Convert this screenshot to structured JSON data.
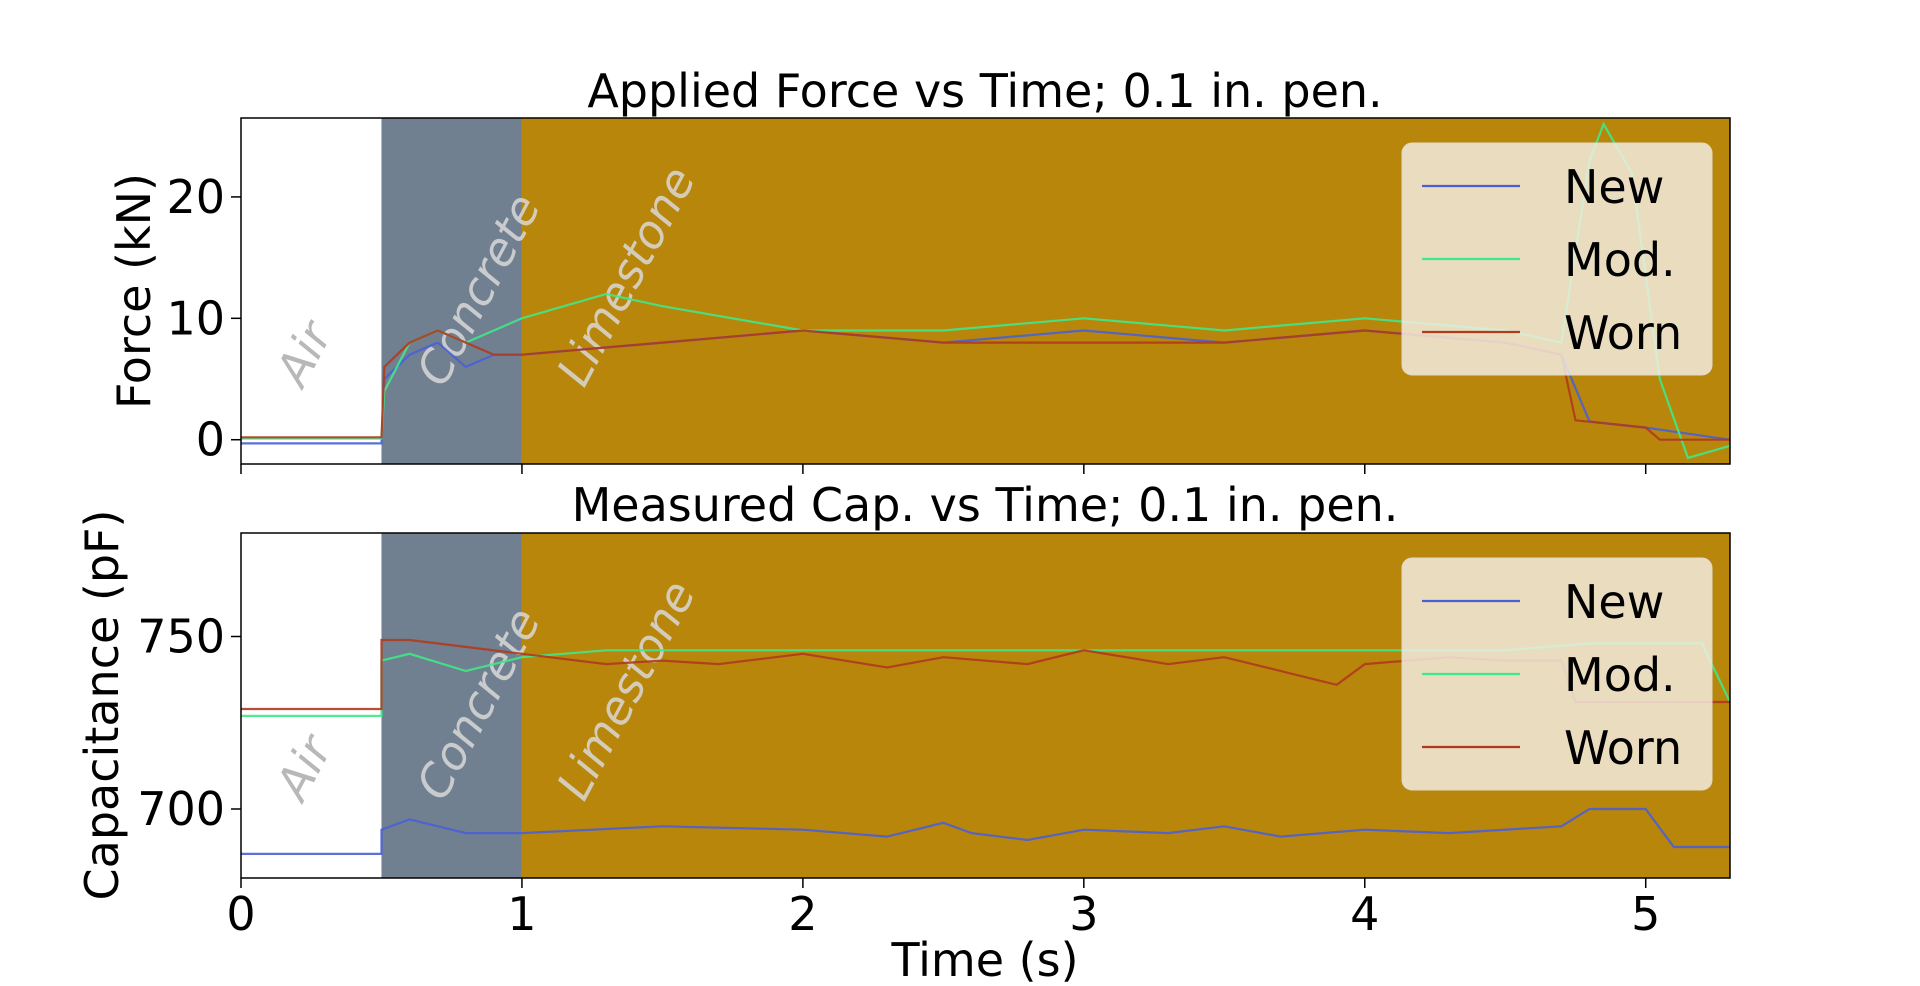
{
  "chart_data": [
    {
      "type": "line",
      "title": "Applied Force vs Time; 0.1 in. pen.",
      "xlabel": "",
      "ylabel": "Force (kN)",
      "xlim": [
        0,
        5.3
      ],
      "ylim": [
        -2,
        26.5
      ],
      "xticks": [
        0,
        1,
        2,
        3,
        4,
        5
      ],
      "xtick_labels_visible": false,
      "yticks": [
        0,
        10,
        20
      ],
      "ytick_labels": [
        "0",
        "10",
        "20"
      ],
      "grid": false,
      "legend": {
        "placement": "top-right",
        "entries": [
          "New",
          "Mod.",
          "Worn"
        ]
      },
      "regions": [
        {
          "label": "Air",
          "x_start": 0,
          "x_end": 0.5,
          "color": "#ffffff"
        },
        {
          "label": "Concrete",
          "x_start": 0.5,
          "x_end": 1.0,
          "color": "#708090"
        },
        {
          "label": "Limestone",
          "x_start": 1.0,
          "x_end": 5.3,
          "color": "#b8860b"
        }
      ],
      "series": [
        {
          "name": "New",
          "color": "#4a5fd6",
          "x": [
            0,
            0.5,
            0.51,
            0.6,
            0.7,
            0.8,
            0.9,
            1.0,
            1.5,
            2.0,
            2.5,
            3.0,
            3.5,
            4.0,
            4.5,
            4.7,
            4.8,
            5.0,
            5.3
          ],
          "y": [
            -0.3,
            -0.3,
            5,
            7,
            8,
            6,
            7,
            7,
            8,
            9,
            8,
            9,
            8,
            9,
            8,
            7,
            1.5,
            1,
            0
          ]
        },
        {
          "name": "Mod.",
          "color": "#3fe888",
          "x": [
            0,
            0.5,
            0.51,
            0.6,
            0.7,
            0.8,
            0.9,
            1.0,
            1.3,
            1.5,
            2.0,
            2.5,
            3.0,
            3.5,
            4.0,
            4.5,
            4.7,
            4.8,
            4.85,
            4.95,
            5.05,
            5.15,
            5.3
          ],
          "y": [
            0.1,
            0.1,
            4,
            8,
            9,
            8,
            9,
            10,
            12,
            11,
            9,
            9,
            10,
            9,
            10,
            9,
            8,
            23,
            26,
            22,
            5,
            -1.5,
            -0.5
          ]
        },
        {
          "name": "Worn",
          "color": "#b03a1e",
          "x": [
            0,
            0.5,
            0.51,
            0.6,
            0.7,
            0.8,
            0.9,
            1.0,
            1.5,
            2.0,
            2.5,
            3.0,
            3.5,
            4.0,
            4.5,
            4.7,
            4.75,
            5.0,
            5.05,
            5.3
          ],
          "y": [
            0.2,
            0.2,
            6,
            8,
            9,
            8,
            7,
            7,
            8,
            9,
            8,
            8,
            8,
            9,
            8,
            7,
            1.6,
            1,
            0,
            0
          ]
        }
      ]
    },
    {
      "type": "line",
      "title": "Measured Cap. vs Time; 0.1 in. pen.",
      "xlabel": "Time (s)",
      "ylabel": "Capacitance (pF)",
      "xlim": [
        0,
        5.3
      ],
      "ylim": [
        680,
        780
      ],
      "xticks": [
        0,
        1,
        2,
        3,
        4,
        5
      ],
      "xtick_labels": [
        "0",
        "1",
        "2",
        "3",
        "4",
        "5"
      ],
      "yticks": [
        700,
        750
      ],
      "ytick_labels": [
        "700",
        "750"
      ],
      "grid": false,
      "legend": {
        "placement": "top-right",
        "entries": [
          "New",
          "Mod.",
          "Worn"
        ]
      },
      "regions": [
        {
          "label": "Air",
          "x_start": 0,
          "x_end": 0.5,
          "color": "#ffffff"
        },
        {
          "label": "Concrete",
          "x_start": 0.5,
          "x_end": 1.0,
          "color": "#708090"
        },
        {
          "label": "Limestone",
          "x_start": 1.0,
          "x_end": 5.3,
          "color": "#b8860b"
        }
      ],
      "series": [
        {
          "name": "New",
          "color": "#4a5fd6",
          "x": [
            0,
            0.5,
            0.5,
            0.6,
            0.8,
            1.0,
            1.5,
            2.0,
            2.3,
            2.5,
            2.6,
            2.8,
            3.0,
            3.3,
            3.5,
            3.7,
            4.0,
            4.3,
            4.7,
            4.8,
            5.0,
            5.1,
            5.3
          ],
          "y": [
            687,
            687,
            694,
            697,
            693,
            693,
            695,
            694,
            692,
            696,
            693,
            691,
            694,
            693,
            695,
            692,
            694,
            693,
            695,
            700,
            700,
            689,
            689
          ]
        },
        {
          "name": "Mod.",
          "color": "#3fe888",
          "x": [
            0,
            0.5,
            0.5,
            0.6,
            0.8,
            1.0,
            1.3,
            1.5,
            2.0,
            2.5,
            3.0,
            3.5,
            4.0,
            4.5,
            4.8,
            5.2,
            5.3
          ],
          "y": [
            727,
            727,
            743,
            745,
            740,
            744,
            746,
            746,
            746,
            746,
            746,
            746,
            746,
            746,
            748,
            748,
            731
          ]
        },
        {
          "name": "Worn",
          "color": "#b03a1e",
          "x": [
            0,
            0.5,
            0.5,
            0.6,
            0.8,
            1.0,
            1.3,
            1.5,
            1.7,
            2.0,
            2.3,
            2.5,
            2.8,
            3.0,
            3.3,
            3.5,
            3.8,
            3.9,
            4.0,
            4.3,
            4.5,
            4.7,
            4.75,
            5.3
          ],
          "y": [
            729,
            729,
            749,
            749,
            747,
            745,
            742,
            743,
            742,
            745,
            741,
            744,
            742,
            746,
            742,
            744,
            738,
            736,
            742,
            744,
            743,
            743,
            731,
            731
          ]
        }
      ]
    }
  ]
}
